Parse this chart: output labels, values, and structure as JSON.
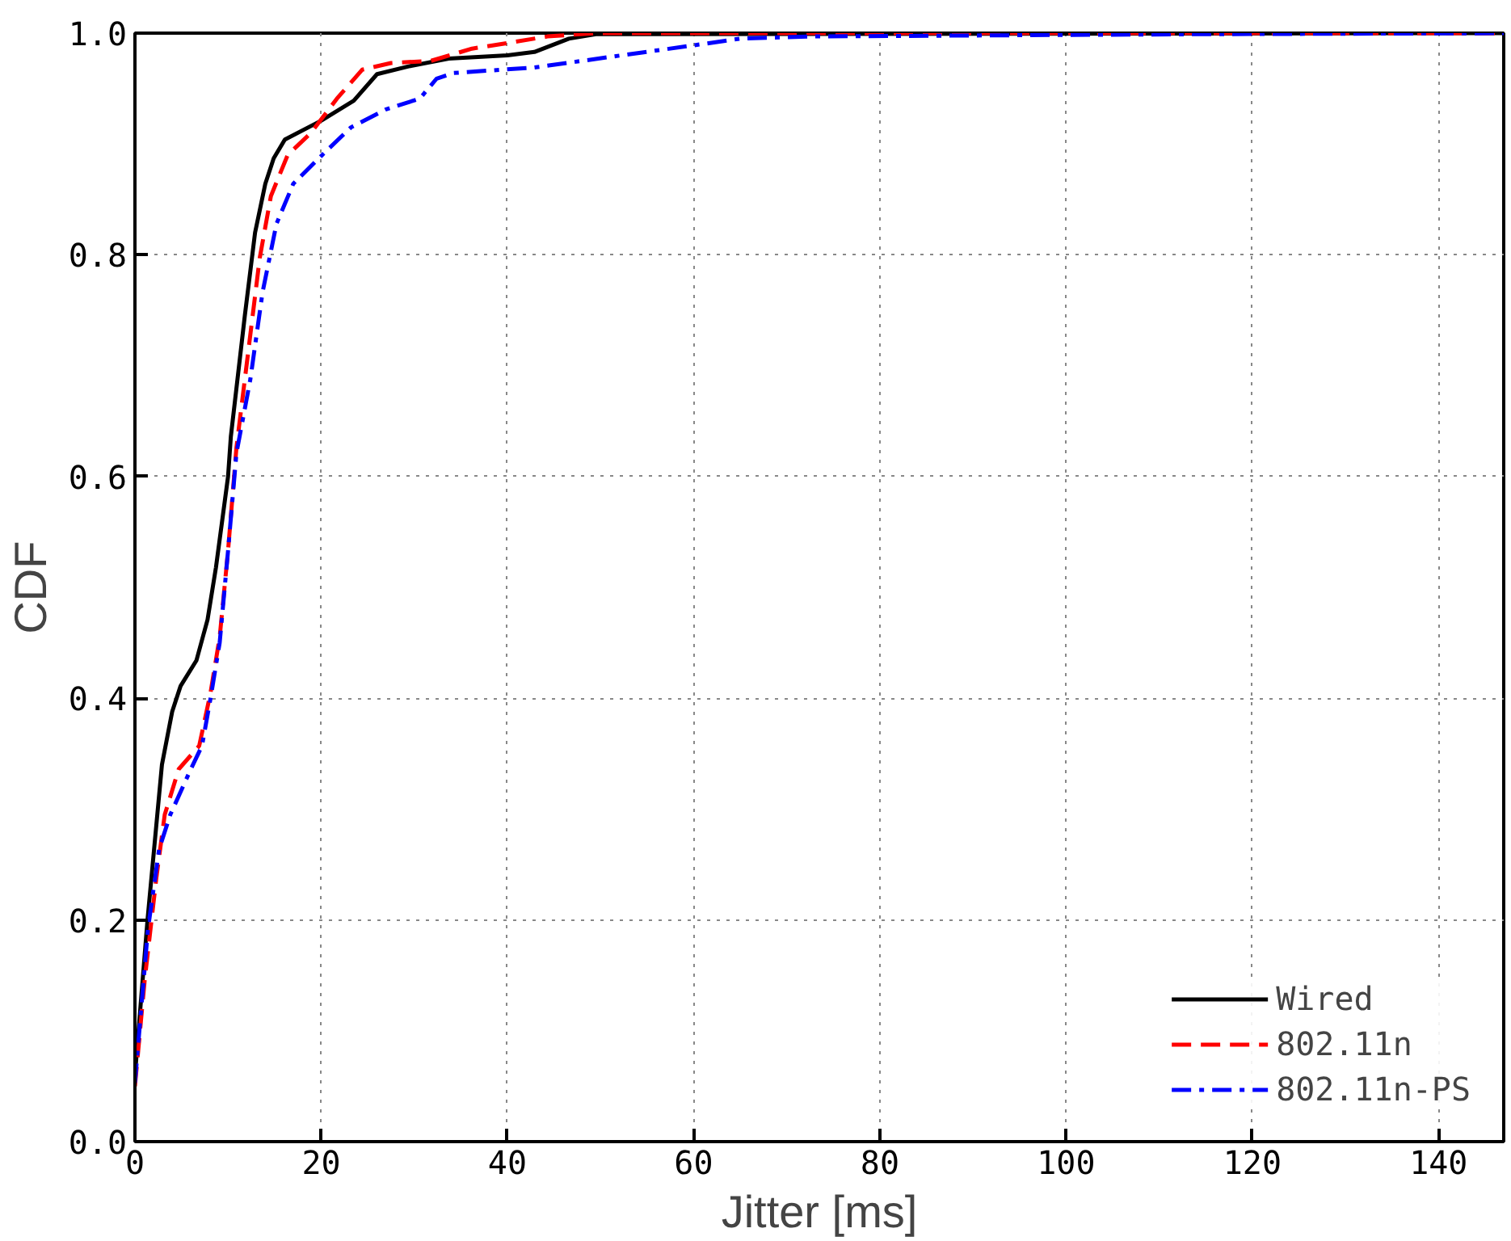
{
  "chart_data": {
    "type": "line",
    "xlabel": "Jitter [ms]",
    "ylabel": "CDF",
    "xlim": [
      0,
      147
    ],
    "ylim": [
      0,
      1
    ],
    "xticks": [
      0,
      20,
      40,
      60,
      80,
      100,
      120,
      140
    ],
    "yticks": [
      {
        "value": 0,
        "label": "0.0"
      },
      {
        "value": 0.2,
        "label": "0.2"
      },
      {
        "value": 0.4,
        "label": "0.4"
      },
      {
        "value": 0.6,
        "label": "0.6"
      },
      {
        "value": 0.8,
        "label": "0.8"
      },
      {
        "value": 1,
        "label": "1.0"
      }
    ],
    "grid": true,
    "legend": "bottom right",
    "marker": "none",
    "series": [
      {
        "name": "Wired",
        "color": "#000000",
        "line_style": "solid",
        "x": [
          0,
          1.35,
          2.9,
          4.0,
          4.9,
          6.6,
          7.8,
          8.7,
          10.0,
          10.3,
          11.8,
          12.9,
          14.0,
          14.9,
          16.1,
          20,
          23.5,
          26,
          29.4,
          33.7,
          40,
          42.9,
          46.6,
          49.5,
          147
        ],
        "values": [
          0.06,
          0.2,
          0.34,
          0.388,
          0.411,
          0.434,
          0.471,
          0.518,
          0.6,
          0.636,
          0.745,
          0.82,
          0.864,
          0.887,
          0.904,
          0.921,
          0.939,
          0.963,
          0.97,
          0.977,
          0.98,
          0.983,
          0.995,
          0.999,
          1.0
        ]
      },
      {
        "name": "802.11n",
        "color": "#ff0000",
        "line_style": "dashed",
        "x": [
          0,
          1.05,
          2.3,
          3.2,
          4.7,
          6.9,
          8.1,
          9.1,
          10,
          10.9,
          12.1,
          13.4,
          14.6,
          16.4,
          18.9,
          21.7,
          24.4,
          27.5,
          31.8,
          36.2,
          40,
          44.3,
          49.5,
          147
        ],
        "values": [
          0.05,
          0.146,
          0.238,
          0.295,
          0.336,
          0.357,
          0.404,
          0.455,
          0.533,
          0.626,
          0.708,
          0.797,
          0.853,
          0.89,
          0.91,
          0.941,
          0.967,
          0.973,
          0.975,
          0.986,
          0.991,
          0.997,
          1.0,
          1.0
        ]
      },
      {
        "name": "802.11n-PS",
        "color": "#0000ff",
        "line_style": "dashdot",
        "x": [
          0,
          1.4,
          2.6,
          3.8,
          6.0,
          7.2,
          8.1,
          9.1,
          10,
          10.9,
          12.4,
          13.7,
          15.2,
          17.0,
          20.1,
          23.2,
          26.9,
          30.6,
          32.4,
          34.2,
          42.9,
          60,
          65,
          72.4,
          113,
          147
        ],
        "values": [
          0.053,
          0.192,
          0.264,
          0.295,
          0.336,
          0.357,
          0.399,
          0.45,
          0.533,
          0.621,
          0.688,
          0.766,
          0.828,
          0.864,
          0.89,
          0.915,
          0.931,
          0.941,
          0.959,
          0.964,
          0.969,
          0.989,
          0.995,
          0.997,
          0.999,
          1.0
        ]
      }
    ]
  }
}
